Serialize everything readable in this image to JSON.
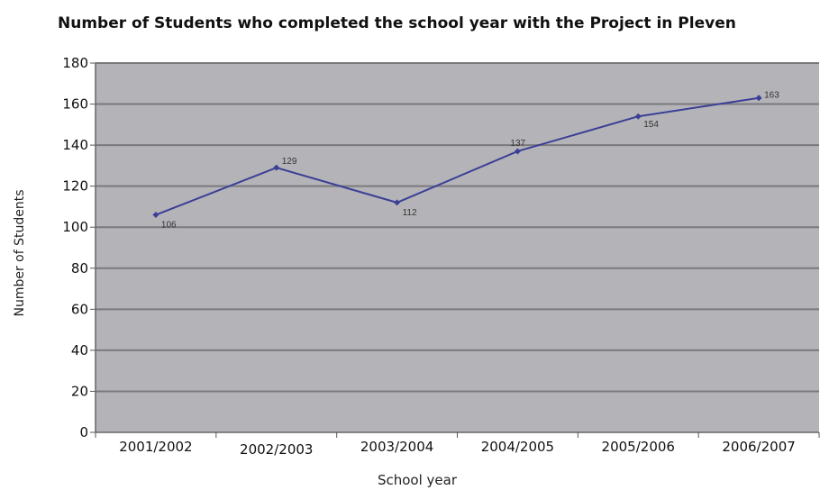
{
  "chart_data": {
    "type": "line",
    "title": "Number of Students who completed the school year with the Project in Pleven",
    "xlabel": "School year",
    "ylabel": "Number of Students",
    "categories": [
      "2001/2002",
      "2002/2003",
      "2003/2004",
      "2004/2005",
      "2005/2006",
      "2006/2007"
    ],
    "series": [
      {
        "values": [
          106,
          129,
          112,
          137,
          154,
          163
        ],
        "color": "#3b3f96"
      }
    ],
    "data_labels": [
      "106",
      "129",
      "112",
      "137",
      "154",
      "163"
    ],
    "ylim": [
      0,
      180
    ],
    "yticks": [
      0,
      20,
      40,
      60,
      80,
      100,
      120,
      140,
      160,
      180
    ],
    "ytick_labels": [
      "0",
      "20",
      "40",
      "60",
      "80",
      "100",
      "120",
      "140",
      "160",
      "180"
    ],
    "grid": true,
    "legend": "none",
    "plot_background": "#b4b4b8",
    "gridline_color": "#7a7a7e"
  }
}
